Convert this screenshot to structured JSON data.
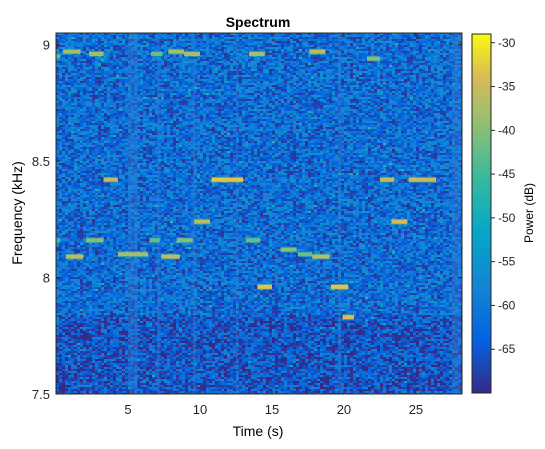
{
  "chart_data": {
    "type": "heatmap",
    "title": "Spectrum",
    "xlabel": "Time (s)",
    "ylabel": "Frequency (kHz)",
    "xlim": [
      0,
      28.2
    ],
    "ylim": [
      7.5,
      9.05
    ],
    "xticks": [
      5,
      10,
      15,
      20,
      25
    ],
    "yticks": [
      7.5,
      8,
      8.5,
      9
    ],
    "colorbar": {
      "label": "Power (dB)",
      "ticks": [
        -30,
        -35,
        -40,
        -45,
        -50,
        -55,
        -60,
        -65
      ],
      "range": [
        -70,
        -29
      ],
      "colormap": "parula"
    },
    "background_level_db": -62,
    "tone_segments": [
      {
        "t0": 0.0,
        "t1": 0.3,
        "f": 8.95,
        "db": -42
      },
      {
        "t0": 0.5,
        "t1": 1.7,
        "f": 8.97,
        "db": -38
      },
      {
        "t0": 2.3,
        "t1": 3.3,
        "f": 8.96,
        "db": -38
      },
      {
        "t0": 6.6,
        "t1": 7.4,
        "f": 8.96,
        "db": -42
      },
      {
        "t0": 7.8,
        "t1": 8.9,
        "f": 8.97,
        "db": -38
      },
      {
        "t0": 8.9,
        "t1": 10.0,
        "f": 8.96,
        "db": -38
      },
      {
        "t0": 13.4,
        "t1": 14.5,
        "f": 8.96,
        "db": -38
      },
      {
        "t0": 17.6,
        "t1": 18.7,
        "f": 8.97,
        "db": -36
      },
      {
        "t0": 21.6,
        "t1": 22.5,
        "f": 8.94,
        "db": -40
      },
      {
        "t0": 3.3,
        "t1": 4.3,
        "f": 8.42,
        "db": -36
      },
      {
        "t0": 10.8,
        "t1": 13.0,
        "f": 8.42,
        "db": -33
      },
      {
        "t0": 22.5,
        "t1": 23.5,
        "f": 8.42,
        "db": -36
      },
      {
        "t0": 24.5,
        "t1": 26.4,
        "f": 8.42,
        "db": -35
      },
      {
        "t0": 9.6,
        "t1": 10.7,
        "f": 8.24,
        "db": -36
      },
      {
        "t0": 23.3,
        "t1": 24.4,
        "f": 8.24,
        "db": -34
      },
      {
        "t0": 0.0,
        "t1": 0.3,
        "f": 8.16,
        "db": -45
      },
      {
        "t0": 2.1,
        "t1": 3.3,
        "f": 8.16,
        "db": -40
      },
      {
        "t0": 6.5,
        "t1": 7.2,
        "f": 8.16,
        "db": -42
      },
      {
        "t0": 8.4,
        "t1": 9.5,
        "f": 8.16,
        "db": -40
      },
      {
        "t0": 13.2,
        "t1": 14.2,
        "f": 8.16,
        "db": -42
      },
      {
        "t0": 0.7,
        "t1": 1.9,
        "f": 8.09,
        "db": -36
      },
      {
        "t0": 4.3,
        "t1": 6.4,
        "f": 8.1,
        "db": -38
      },
      {
        "t0": 7.3,
        "t1": 8.6,
        "f": 8.09,
        "db": -36
      },
      {
        "t0": 15.6,
        "t1": 16.7,
        "f": 8.12,
        "db": -40
      },
      {
        "t0": 16.8,
        "t1": 17.8,
        "f": 8.1,
        "db": -42
      },
      {
        "t0": 17.8,
        "t1": 19.0,
        "f": 8.09,
        "db": -36
      },
      {
        "t0": 14.0,
        "t1": 15.0,
        "f": 7.96,
        "db": -33
      },
      {
        "t0": 19.1,
        "t1": 20.3,
        "f": 7.96,
        "db": -33
      },
      {
        "t0": 19.9,
        "t1": 20.7,
        "f": 7.83,
        "db": -34
      }
    ]
  }
}
